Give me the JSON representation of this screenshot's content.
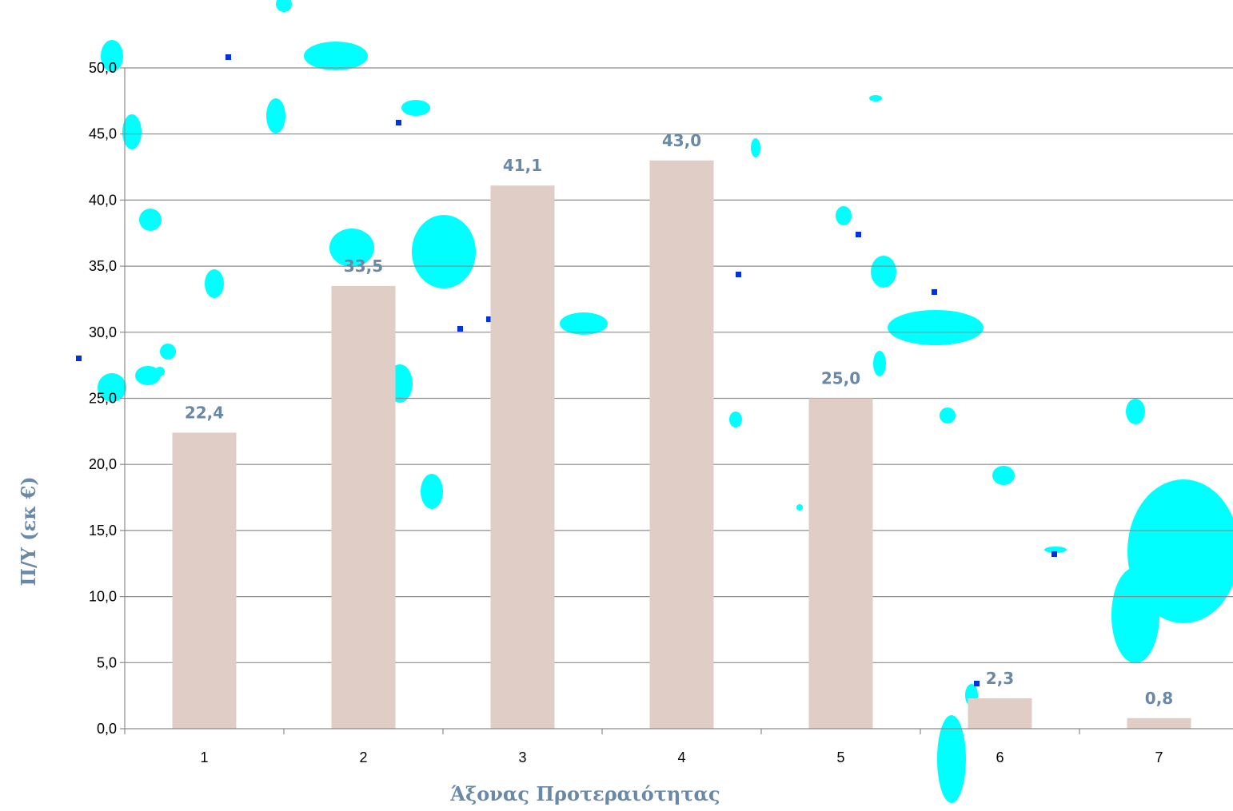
{
  "chart_data": {
    "type": "bar",
    "categories": [
      "1",
      "2",
      "3",
      "4",
      "5",
      "6",
      "7"
    ],
    "values": [
      22.4,
      33.5,
      41.1,
      43.0,
      25.0,
      2.3,
      0.8
    ],
    "value_labels": [
      "22,4",
      "33,5",
      "41,1",
      "43,0",
      "25,0",
      "2,3",
      "0,8"
    ],
    "xlabel": "Άξονας Προτεραιότητας",
    "ylabel": "Π/Υ (εκ €)",
    "ylim": [
      0,
      50
    ],
    "yticks": [
      0,
      5,
      10,
      15,
      20,
      25,
      30,
      35,
      40,
      45,
      50
    ],
    "ytick_labels": [
      "0,0",
      "5,0",
      "10,0",
      "15,0",
      "20,0",
      "25,0",
      "30,0",
      "35,0",
      "40,0",
      "45,0",
      "50,0"
    ],
    "grid": true,
    "legend": "none",
    "colors": {
      "bar": "#e0cdc5",
      "data_label": "#6a89a8",
      "axis_title": "#6a89a8",
      "grid": "#8c8c8c",
      "axis": "#8c8c8c",
      "overlay_main": "#00ffff",
      "overlay_dark": "#0033dd"
    }
  }
}
